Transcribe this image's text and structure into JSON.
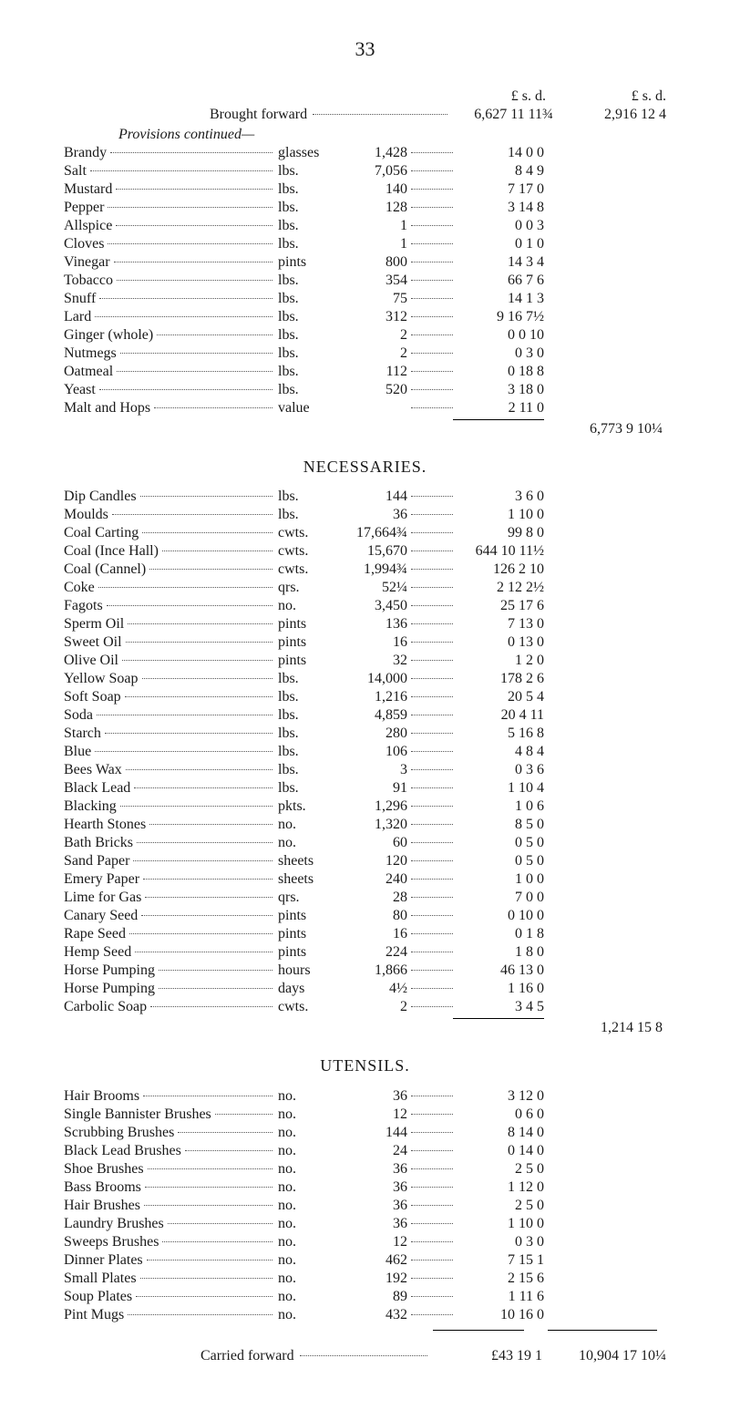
{
  "page_number": "33",
  "header": {
    "cols1": "£   s.   d.",
    "cols2": "£   s.   d.",
    "brought_forward_label": "Brought forward",
    "brought_forward_amount": "6,627 11 11¾",
    "brought_forward_total": "2,916 12  4"
  },
  "provisions_continued": "Provisions continued—",
  "provisions": [
    {
      "name": "Brandy",
      "unit": "glasses",
      "qty": "1,428",
      "amt": "14  0  0"
    },
    {
      "name": "Salt",
      "unit": "lbs.",
      "qty": "7,056",
      "amt": "8  4  9"
    },
    {
      "name": "Mustard",
      "unit": "lbs.",
      "qty": "140",
      "amt": "7 17  0"
    },
    {
      "name": "Pepper",
      "unit": "lbs.",
      "qty": "128",
      "amt": "3 14  8"
    },
    {
      "name": "Allspice",
      "unit": "lbs.",
      "qty": "1",
      "amt": "0  0  3"
    },
    {
      "name": "Cloves",
      "unit": "lbs.",
      "qty": "1",
      "amt": "0  1  0"
    },
    {
      "name": "Vinegar",
      "unit": "pints",
      "qty": "800",
      "amt": "14  3  4"
    },
    {
      "name": "Tobacco",
      "unit": "lbs.",
      "qty": "354",
      "amt": "66  7  6"
    },
    {
      "name": "Snuff",
      "unit": "lbs.",
      "qty": "75",
      "amt": "14  1  3"
    },
    {
      "name": "Lard",
      "unit": "lbs.",
      "qty": "312",
      "amt": "9 16  7½"
    },
    {
      "name": "Ginger (whole)",
      "unit": "lbs.",
      "qty": "2",
      "amt": "0  0 10"
    },
    {
      "name": "Nutmegs",
      "unit": "lbs.",
      "qty": "2",
      "amt": "0  3  0"
    },
    {
      "name": "Oatmeal",
      "unit": "lbs.",
      "qty": "112",
      "amt": "0 18  8"
    },
    {
      "name": "Yeast",
      "unit": "lbs.",
      "qty": "520",
      "amt": "3 18  0"
    },
    {
      "name": "Malt and Hops",
      "unit": "value",
      "qty": "",
      "amt": "2 11  0"
    }
  ],
  "provisions_subtotal": "6,773  9 10¼",
  "necessaries_title": "NECESSARIES.",
  "necessaries": [
    {
      "name": "Dip Candles",
      "unit": "lbs.",
      "qty": "144",
      "amt": "3  6  0"
    },
    {
      "name": "Moulds",
      "unit": "lbs.",
      "qty": "36",
      "amt": "1 10  0"
    },
    {
      "name": "Coal Carting",
      "unit": "cwts.",
      "qty": "17,664¾",
      "amt": "99  8  0"
    },
    {
      "name": "Coal (Ince Hall)",
      "unit": "cwts.",
      "qty": "15,670",
      "amt": "644 10 11½"
    },
    {
      "name": "Coal (Cannel)",
      "unit": "cwts.",
      "qty": "1,994¾",
      "amt": "126  2 10"
    },
    {
      "name": "Coke",
      "unit": "qrs.",
      "qty": "52¼",
      "amt": "2 12  2½"
    },
    {
      "name": "Fagots",
      "unit": "no.",
      "qty": "3,450",
      "amt": "25 17  6"
    },
    {
      "name": "Sperm Oil",
      "unit": "pints",
      "qty": "136",
      "amt": "7 13  0"
    },
    {
      "name": "Sweet Oil",
      "unit": "pints",
      "qty": "16",
      "amt": "0 13  0"
    },
    {
      "name": "Olive Oil",
      "unit": "pints",
      "qty": "32",
      "amt": "1  2  0"
    },
    {
      "name": "Yellow Soap",
      "unit": "lbs.",
      "qty": "14,000",
      "amt": "178  2  6"
    },
    {
      "name": "Soft Soap",
      "unit": "lbs.",
      "qty": "1,216",
      "amt": "20  5  4"
    },
    {
      "name": "Soda",
      "unit": "lbs.",
      "qty": "4,859",
      "amt": "20  4 11"
    },
    {
      "name": "Starch",
      "unit": "lbs.",
      "qty": "280",
      "amt": "5 16  8"
    },
    {
      "name": "Blue",
      "unit": "lbs.",
      "qty": "106",
      "amt": "4  8  4"
    },
    {
      "name": "Bees Wax",
      "unit": "lbs.",
      "qty": "3",
      "amt": "0  3  6"
    },
    {
      "name": "Black Lead",
      "unit": "lbs.",
      "qty": "91",
      "amt": "1 10  4"
    },
    {
      "name": "Blacking",
      "unit": "pkts.",
      "qty": "1,296",
      "amt": "1  0  6"
    },
    {
      "name": "Hearth Stones",
      "unit": "no.",
      "qty": "1,320",
      "amt": "8  5  0"
    },
    {
      "name": "Bath Bricks",
      "unit": "no.",
      "qty": "60",
      "amt": "0  5  0"
    },
    {
      "name": "Sand Paper",
      "unit": "sheets",
      "qty": "120",
      "amt": "0  5  0"
    },
    {
      "name": "Emery Paper",
      "unit": "sheets",
      "qty": "240",
      "amt": "1  0  0"
    },
    {
      "name": "Lime for Gas",
      "unit": "qrs.",
      "qty": "28",
      "amt": "7  0  0"
    },
    {
      "name": "Canary Seed",
      "unit": "pints",
      "qty": "80",
      "amt": "0 10  0"
    },
    {
      "name": "Rape Seed",
      "unit": "pints",
      "qty": "16",
      "amt": "0  1  8"
    },
    {
      "name": "Hemp Seed",
      "unit": "pints",
      "qty": "224",
      "amt": "1  8  0"
    },
    {
      "name": "Horse Pumping",
      "unit": "hours",
      "qty": "1,866",
      "amt": "46 13  0"
    },
    {
      "name": "Horse Pumping",
      "unit": "days",
      "qty": "4½",
      "amt": "1 16  0"
    },
    {
      "name": "Carbolic Soap",
      "unit": "cwts.",
      "qty": "2",
      "amt": "3  4  5"
    }
  ],
  "necessaries_subtotal": "1,214 15  8",
  "utensils_title": "UTENSILS.",
  "utensils": [
    {
      "name": "Hair Brooms",
      "unit": "no.",
      "qty": "36",
      "amt": "3 12  0"
    },
    {
      "name": "Single Bannister Brushes",
      "unit": "no.",
      "qty": "12",
      "amt": "0  6  0"
    },
    {
      "name": "Scrubbing Brushes",
      "unit": "no.",
      "qty": "144",
      "amt": "8 14  0"
    },
    {
      "name": "Black Lead Brushes",
      "unit": "no.",
      "qty": "24",
      "amt": "0 14  0"
    },
    {
      "name": "Shoe Brushes",
      "unit": "no.",
      "qty": "36",
      "amt": "2  5  0"
    },
    {
      "name": "Bass Brooms",
      "unit": "no.",
      "qty": "36",
      "amt": "1 12  0"
    },
    {
      "name": "Hair Brushes",
      "unit": "no.",
      "qty": "36",
      "amt": "2  5  0"
    },
    {
      "name": "Laundry Brushes",
      "unit": "no.",
      "qty": "36",
      "amt": "1 10  0"
    },
    {
      "name": "Sweeps Brushes",
      "unit": "no.",
      "qty": "12",
      "amt": "0  3  0"
    },
    {
      "name": "Dinner Plates",
      "unit": "no.",
      "qty": "462",
      "amt": "7 15  1"
    },
    {
      "name": "Small Plates",
      "unit": "no.",
      "qty": "192",
      "amt": "2 15  6"
    },
    {
      "name": "Soup Plates",
      "unit": "no.",
      "qty": "89",
      "amt": "1 11  6"
    },
    {
      "name": "Pint Mugs",
      "unit": "no.",
      "qty": "432",
      "amt": "10 16  0"
    }
  ],
  "carried_forward_label": "Carried forward",
  "carried_forward_amount": "£43 19  1",
  "carried_forward_total": "10,904 17 10¼"
}
